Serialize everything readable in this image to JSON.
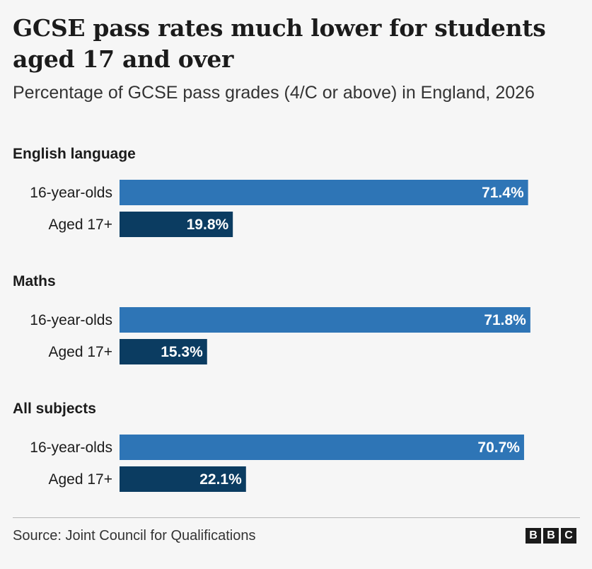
{
  "title": "GCSE pass rates much lower for students aged 17 and over",
  "subtitle": "Percentage of GCSE pass grades (4/C or above) in England, 2026",
  "source": "Source: Joint Council for Qualifications",
  "logo": [
    "B",
    "B",
    "C"
  ],
  "colors": {
    "series_16": "#2e75b6",
    "series_17": "#0b3c61",
    "background": "#f6f6f6"
  },
  "chart_data": {
    "type": "bar",
    "orientation": "horizontal",
    "value_suffix": "%",
    "xlim": [
      0,
      100
    ],
    "grid": false,
    "groups": [
      {
        "name": "English language",
        "bars": [
          {
            "label": "16-year-olds",
            "value": 71.4
          },
          {
            "label": "Aged 17+",
            "value": 19.8
          }
        ]
      },
      {
        "name": "Maths",
        "bars": [
          {
            "label": "16-year-olds",
            "value": 71.8
          },
          {
            "label": "Aged 17+",
            "value": 15.3
          }
        ]
      },
      {
        "name": "All subjects",
        "bars": [
          {
            "label": "16-year-olds",
            "value": 70.7
          },
          {
            "label": "Aged 17+",
            "value": 22.1
          }
        ]
      }
    ]
  }
}
